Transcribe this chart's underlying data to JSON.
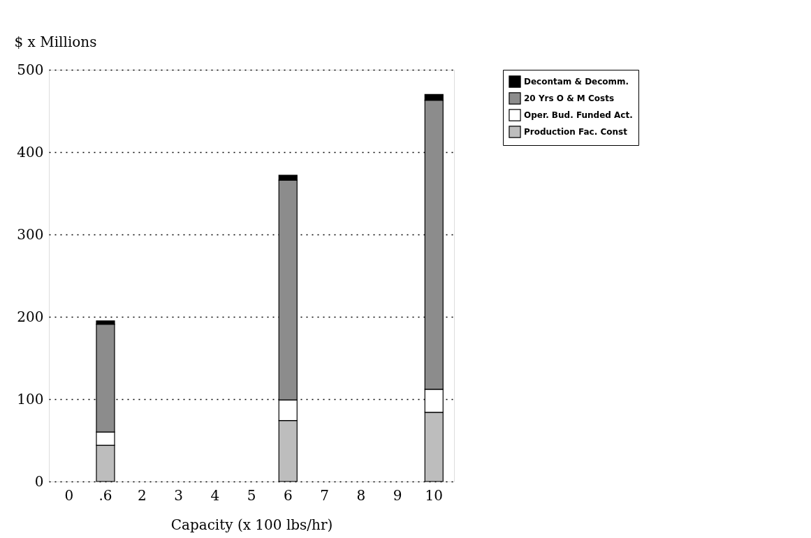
{
  "chart_data": {
    "type": "bar",
    "stacked": true,
    "ylabel": "$ x Millions",
    "xlabel": "Capacity (x 100 lbs/hr)",
    "categories": [
      "0",
      ".6",
      "2",
      "3",
      "4",
      "5",
      "6",
      "7",
      "8",
      "9",
      "10"
    ],
    "series": [
      {
        "name": "Production Fac. Const",
        "color": "#bdbdbd",
        "values": [
          null,
          44,
          null,
          null,
          null,
          null,
          74,
          null,
          null,
          null,
          84
        ]
      },
      {
        "name": "Oper. Bud. Funded Act.",
        "color": "#ffffff",
        "values": [
          null,
          16,
          null,
          null,
          null,
          null,
          25,
          null,
          null,
          null,
          28
        ]
      },
      {
        "name": "20 Yrs O & M Costs",
        "color": "#8c8c8c",
        "values": [
          null,
          131,
          null,
          null,
          null,
          null,
          267,
          null,
          null,
          null,
          351
        ]
      },
      {
        "name": "Decontam & Decomm.",
        "color": "#000000",
        "values": [
          null,
          4,
          null,
          null,
          null,
          null,
          6,
          null,
          null,
          null,
          7
        ]
      }
    ],
    "ylim": [
      0,
      500
    ],
    "yticks": [
      0,
      100,
      200,
      300,
      400,
      500
    ],
    "grid": "y",
    "legend": "right"
  }
}
